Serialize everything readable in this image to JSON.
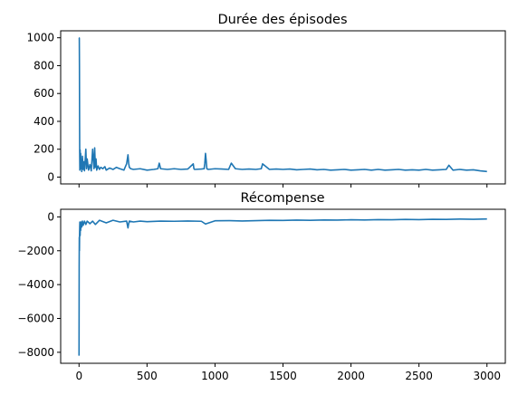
{
  "figure": {
    "background": "#ffffff",
    "series_color": "#1f77b4"
  },
  "chart_data": [
    {
      "type": "line",
      "title": "Durée des épisodes",
      "xlabel": "",
      "ylabel": "",
      "xlim": [
        -135,
        3135
      ],
      "ylim": [
        -49,
        1050
      ],
      "x_ticks": [
        0,
        500,
        1000,
        1500,
        2000,
        2500,
        3000
      ],
      "x_tick_labels_shown": false,
      "y_ticks": [
        0,
        200,
        400,
        600,
        800,
        1000
      ],
      "y_tick_labels": [
        "0",
        "200",
        "400",
        "600",
        "800",
        "1000"
      ],
      "grid": false,
      "legend": "none",
      "series": [
        {
          "x": [
            0,
            1,
            2,
            3,
            4,
            5,
            6,
            8,
            10,
            12,
            15,
            18,
            20,
            25,
            30,
            35,
            40,
            50,
            55,
            60,
            70,
            80,
            90,
            100,
            110,
            115,
            120,
            125,
            130,
            140,
            150,
            160,
            175,
            190,
            200,
            225,
            250,
            275,
            300,
            330,
            350,
            360,
            365,
            370,
            380,
            400,
            450,
            500,
            550,
            580,
            590,
            600,
            650,
            700,
            750,
            800,
            840,
            845,
            850,
            900,
            920,
            925,
            930,
            935,
            940,
            950,
            1000,
            1050,
            1100,
            1120,
            1150,
            1200,
            1250,
            1300,
            1340,
            1350,
            1400,
            1450,
            1500,
            1550,
            1600,
            1650,
            1700,
            1750,
            1800,
            1850,
            1900,
            1950,
            2000,
            2050,
            2100,
            2150,
            2200,
            2250,
            2300,
            2350,
            2400,
            2450,
            2500,
            2550,
            2600,
            2650,
            2700,
            2720,
            2750,
            2800,
            2850,
            2900,
            2950,
            3000
          ],
          "y": [
            1000,
            1000,
            995,
            800,
            400,
            150,
            50,
            195,
            80,
            170,
            60,
            120,
            40,
            150,
            55,
            110,
            45,
            200,
            60,
            130,
            50,
            90,
            45,
            200,
            60,
            210,
            70,
            130,
            50,
            80,
            55,
            70,
            60,
            75,
            50,
            65,
            55,
            70,
            60,
            50,
            95,
            160,
            100,
            70,
            60,
            55,
            60,
            50,
            55,
            60,
            100,
            60,
            55,
            60,
            55,
            58,
            95,
            60,
            55,
            58,
            60,
            100,
            170,
            120,
            60,
            55,
            60,
            58,
            55,
            100,
            60,
            55,
            58,
            55,
            60,
            95,
            55,
            58,
            55,
            58,
            52,
            55,
            58,
            52,
            55,
            50,
            52,
            55,
            50,
            52,
            55,
            50,
            55,
            50,
            52,
            55,
            50,
            52,
            50,
            55,
            50,
            52,
            55,
            85,
            50,
            55,
            50,
            52,
            45,
            40
          ]
        }
      ]
    },
    {
      "type": "line",
      "title": "Récompense",
      "xlabel": "",
      "ylabel": "",
      "xlim": [
        -135,
        3135
      ],
      "ylim": [
        -8650,
        450
      ],
      "x_ticks": [
        0,
        500,
        1000,
        1500,
        2000,
        2500,
        3000
      ],
      "x_tick_labels": [
        "0",
        "500",
        "1000",
        "1500",
        "2000",
        "2500",
        "3000"
      ],
      "y_ticks": [
        -8000,
        -6000,
        -4000,
        -2000,
        0
      ],
      "y_tick_labels": [
        "−8000",
        "−6000",
        "−4000",
        "−2000",
        "0"
      ],
      "grid": false,
      "legend": "none",
      "series": [
        {
          "x": [
            0,
            1,
            2,
            3,
            4,
            5,
            6,
            8,
            10,
            12,
            15,
            20,
            25,
            30,
            40,
            50,
            60,
            80,
            100,
            120,
            150,
            200,
            250,
            300,
            350,
            360,
            365,
            370,
            400,
            450,
            500,
            600,
            700,
            800,
            900,
            930,
            1000,
            1100,
            1200,
            1300,
            1400,
            1500,
            1600,
            1700,
            1800,
            1900,
            2000,
            2100,
            2200,
            2300,
            2400,
            2500,
            2600,
            2700,
            2800,
            2900,
            3000
          ],
          "y": [
            -8200,
            -3000,
            -1200,
            -2000,
            -1100,
            -600,
            -300,
            -1100,
            -400,
            -800,
            -300,
            -600,
            -250,
            -500,
            -250,
            -450,
            -250,
            -400,
            -250,
            -450,
            -200,
            -350,
            -200,
            -300,
            -250,
            -650,
            -400,
            -250,
            -300,
            -250,
            -280,
            -250,
            -260,
            -240,
            -260,
            -420,
            -230,
            -220,
            -240,
            -220,
            -200,
            -210,
            -190,
            -200,
            -180,
            -190,
            -170,
            -180,
            -160,
            -170,
            -150,
            -160,
            -140,
            -150,
            -130,
            -140,
            -120
          ]
        }
      ]
    }
  ]
}
